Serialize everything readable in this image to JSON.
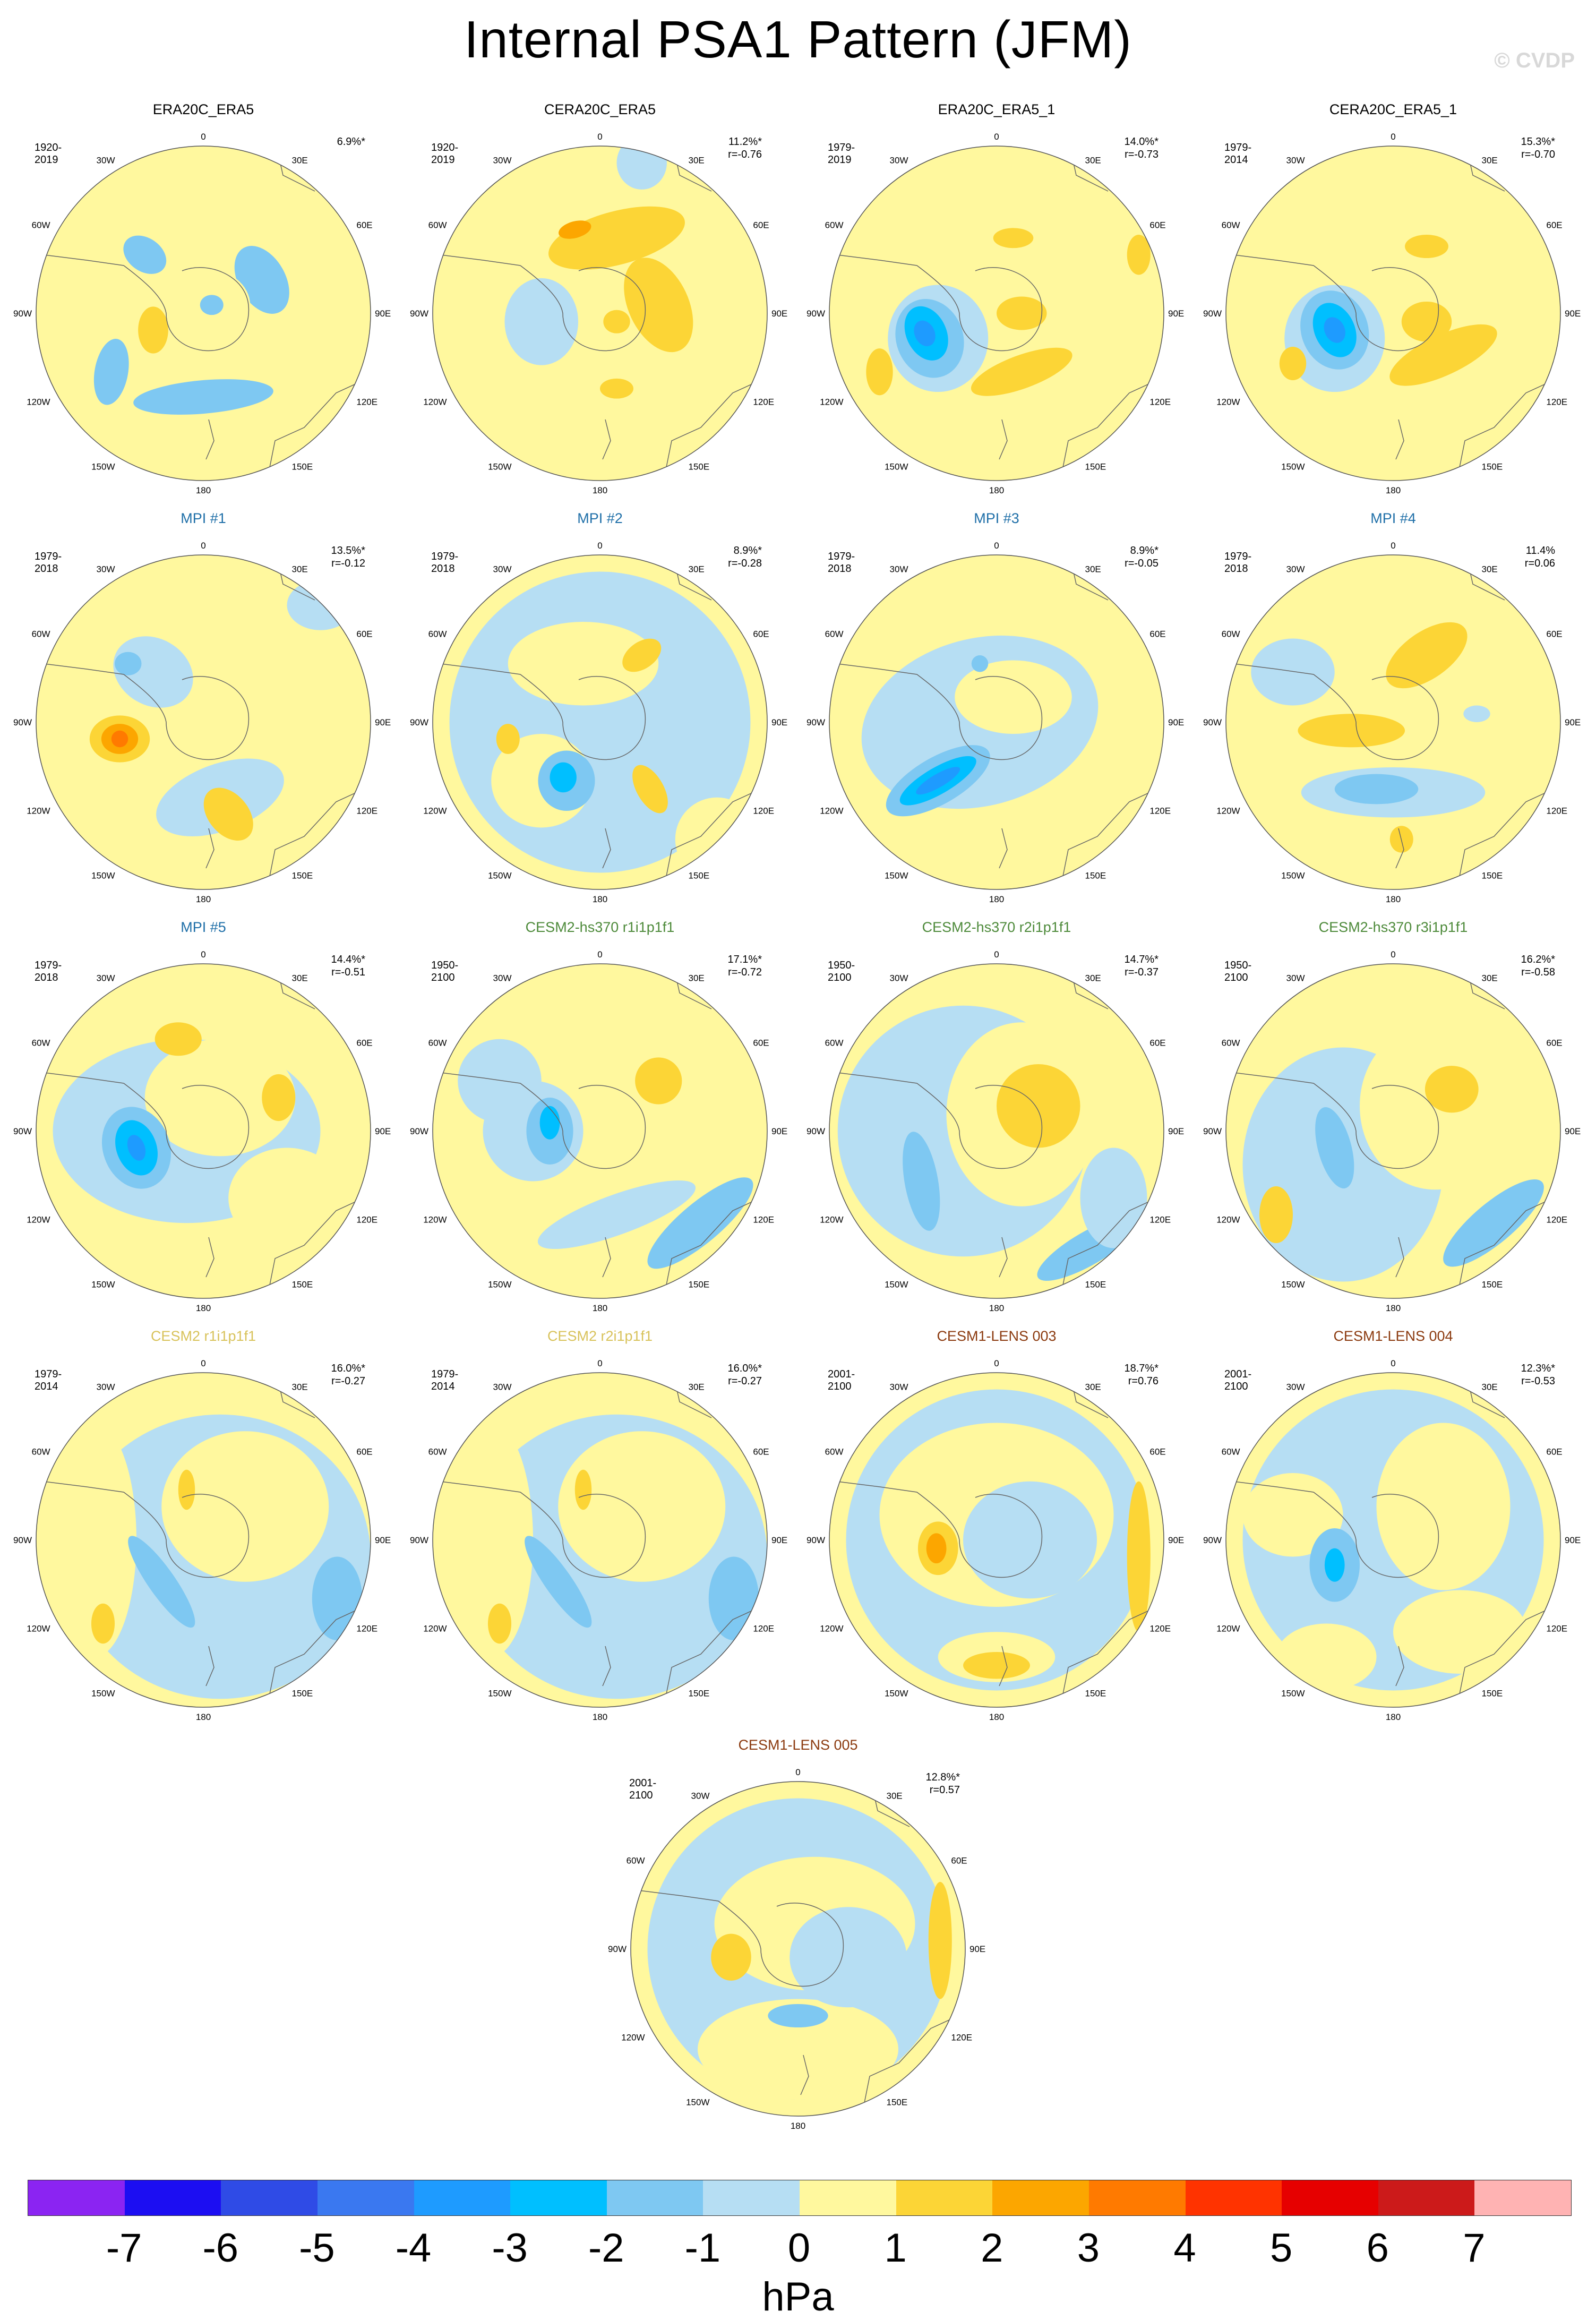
{
  "title": "Internal PSA1 Pattern (JFM)",
  "watermark": "© CVDP",
  "lon_labels": [
    "0",
    "30E",
    "60E",
    "90E",
    "120E",
    "150E",
    "180",
    "150W",
    "120W",
    "90W",
    "60W",
    "30W"
  ],
  "colors": {
    "neg3": "#1e9bff",
    "neg2": "#00bfff",
    "neg1": "#7ec8f2",
    "neg0": "#b6def3",
    "pos0": "#fff89e",
    "pos1": "#fcd536",
    "pos2": "#fca600",
    "pos3": "#ff7a00",
    "obs_title": "#000000",
    "mpi_title": "#1f6fa8",
    "cesm2hs_title": "#4d8a3a",
    "cesm2_title": "#d8c25a",
    "lens_title": "#8b3a0f"
  },
  "panels": [
    {
      "name": "ERA20C_ERA5",
      "period": "1920-2019",
      "pct": "6.9%*",
      "r": "",
      "title_color": "obs_title",
      "blobs": [
        [
          "neg1",
          -0.35,
          -0.35,
          0.14,
          0.1,
          35
        ],
        [
          "neg1",
          0.35,
          -0.2,
          0.14,
          0.22,
          -30
        ],
        [
          "neg1",
          -0.55,
          0.35,
          0.1,
          0.2,
          10
        ],
        [
          "neg1",
          0.0,
          0.5,
          0.42,
          0.1,
          -5
        ],
        [
          "pos0",
          0.0,
          -0.85,
          0.2,
          0.3,
          0
        ],
        [
          "pos0",
          0.0,
          -0.05,
          0.28,
          0.22,
          0
        ],
        [
          "pos1",
          -0.3,
          0.1,
          0.09,
          0.14,
          0
        ],
        [
          "neg1",
          0.05,
          -0.05,
          0.07,
          0.06,
          0
        ]
      ]
    },
    {
      "name": "CERA20C_ERA5",
      "period": "1920-2019",
      "pct": "11.2%*",
      "r": "r=-0.76",
      "title_color": "obs_title",
      "blobs": [
        [
          "pos1",
          0.1,
          -0.45,
          0.42,
          0.16,
          -15
        ],
        [
          "pos2",
          -0.15,
          -0.5,
          0.1,
          0.05,
          -15
        ],
        [
          "pos1",
          0.35,
          -0.05,
          0.18,
          0.3,
          -25
        ],
        [
          "neg0",
          -0.35,
          0.05,
          0.22,
          0.26,
          0
        ],
        [
          "neg0",
          0.25,
          -0.9,
          0.15,
          0.16,
          0
        ],
        [
          "pos1",
          0.1,
          0.45,
          0.1,
          0.06,
          0
        ],
        [
          "pos1",
          0.1,
          0.05,
          0.08,
          0.07,
          0
        ]
      ]
    },
    {
      "name": "ERA20C_ERA5_1",
      "period": "1979-2019",
      "pct": "14.0%*",
      "r": "r=-0.73",
      "title_color": "obs_title",
      "blobs": [
        [
          "pos0",
          0.1,
          -0.3,
          0.5,
          0.3,
          0
        ],
        [
          "pos1",
          0.1,
          -0.45,
          0.12,
          0.06,
          0
        ],
        [
          "neg0",
          -0.35,
          0.15,
          0.3,
          0.32,
          0
        ],
        [
          "neg1",
          -0.4,
          0.15,
          0.2,
          0.24,
          -20
        ],
        [
          "neg2",
          -0.42,
          0.12,
          0.12,
          0.17,
          -25
        ],
        [
          "neg3",
          -0.43,
          0.12,
          0.06,
          0.08,
          -25
        ],
        [
          "pos1",
          0.15,
          0.35,
          0.32,
          0.1,
          -20
        ],
        [
          "pos1",
          -0.7,
          0.35,
          0.08,
          0.14,
          0
        ],
        [
          "pos1",
          0.85,
          -0.35,
          0.07,
          0.12,
          0
        ],
        [
          "pos1",
          0.15,
          0.0,
          0.15,
          0.1,
          0
        ]
      ]
    },
    {
      "name": "CERA20C_ERA5_1",
      "period": "1979-2014",
      "pct": "15.3%*",
      "r": "r=-0.70",
      "title_color": "obs_title",
      "blobs": [
        [
          "pos0",
          0.1,
          -0.3,
          0.5,
          0.3,
          0
        ],
        [
          "pos1",
          0.2,
          -0.4,
          0.13,
          0.07,
          0
        ],
        [
          "neg0",
          -0.35,
          0.15,
          0.3,
          0.32,
          0
        ],
        [
          "neg1",
          -0.35,
          0.1,
          0.2,
          0.24,
          -20
        ],
        [
          "neg2",
          -0.35,
          0.1,
          0.12,
          0.17,
          -25
        ],
        [
          "neg3",
          -0.35,
          0.1,
          0.06,
          0.08,
          -25
        ],
        [
          "pos1",
          0.3,
          0.25,
          0.35,
          0.12,
          -25
        ],
        [
          "pos1",
          -0.6,
          0.3,
          0.08,
          0.1,
          0
        ],
        [
          "pos1",
          0.2,
          0.05,
          0.15,
          0.12,
          0
        ]
      ]
    },
    {
      "name": "MPI #1",
      "period": "1979-2018",
      "pct": "13.5%*",
      "r": "r=-0.12",
      "title_color": "mpi_title",
      "blobs": [
        [
          "neg0",
          -0.3,
          -0.3,
          0.25,
          0.2,
          30
        ],
        [
          "neg1",
          -0.45,
          -0.35,
          0.08,
          0.07,
          0
        ],
        [
          "pos1",
          -0.5,
          0.1,
          0.18,
          0.14,
          0
        ],
        [
          "pos2",
          -0.5,
          0.1,
          0.11,
          0.09,
          0
        ],
        [
          "pos3",
          -0.5,
          0.1,
          0.05,
          0.05,
          0
        ],
        [
          "neg0",
          0.1,
          0.45,
          0.4,
          0.2,
          -20
        ],
        [
          "pos1",
          0.15,
          0.55,
          0.12,
          0.18,
          -40
        ],
        [
          "neg0",
          0.7,
          -0.7,
          0.2,
          0.15,
          0
        ]
      ]
    },
    {
      "name": "MPI #2",
      "period": "1979-2018",
      "pct": "8.9%*",
      "r": "r=-0.28",
      "title_color": "mpi_title",
      "blobs": [
        [
          "neg0",
          0.0,
          0.0,
          0.9,
          0.9,
          0
        ],
        [
          "pos0",
          -0.1,
          -0.35,
          0.45,
          0.25,
          0
        ],
        [
          "pos1",
          0.25,
          -0.4,
          0.13,
          0.08,
          -35
        ],
        [
          "pos0",
          -0.35,
          0.35,
          0.3,
          0.28,
          0
        ],
        [
          "neg1",
          -0.2,
          0.35,
          0.17,
          0.18,
          0
        ],
        [
          "neg2",
          -0.22,
          0.33,
          0.08,
          0.09,
          0
        ],
        [
          "pos1",
          -0.55,
          0.1,
          0.07,
          0.09,
          0
        ],
        [
          "pos1",
          0.3,
          0.4,
          0.08,
          0.16,
          -30
        ],
        [
          "pos0",
          0.7,
          0.7,
          0.25,
          0.25,
          0
        ]
      ]
    },
    {
      "name": "MPI #3",
      "period": "1979-2018",
      "pct": "8.9%*",
      "r": "r=-0.05",
      "title_color": "mpi_title",
      "blobs": [
        [
          "neg0",
          -0.1,
          0.0,
          0.72,
          0.5,
          -15
        ],
        [
          "pos0",
          0.1,
          -0.15,
          0.35,
          0.22,
          0
        ],
        [
          "neg1",
          -0.35,
          0.35,
          0.35,
          0.14,
          -30
        ],
        [
          "neg2",
          -0.35,
          0.35,
          0.26,
          0.08,
          -30
        ],
        [
          "neg3",
          -0.35,
          0.35,
          0.15,
          0.04,
          -30
        ],
        [
          "neg1",
          -0.1,
          -0.35,
          0.05,
          0.05,
          0
        ],
        [
          "pos0",
          0.3,
          0.7,
          0.3,
          0.15,
          0
        ]
      ]
    },
    {
      "name": "MPI #4",
      "period": "1979-2018",
      "pct": "11.4%",
      "r": "r=0.06",
      "title_color": "mpi_title",
      "blobs": [
        [
          "pos1",
          0.2,
          -0.4,
          0.28,
          0.14,
          -35
        ],
        [
          "pos1",
          -0.25,
          0.05,
          0.32,
          0.1,
          0
        ],
        [
          "neg0",
          0.0,
          0.42,
          0.55,
          0.15,
          0
        ],
        [
          "neg1",
          -0.1,
          0.4,
          0.25,
          0.09,
          0
        ],
        [
          "neg0",
          -0.6,
          -0.3,
          0.25,
          0.2,
          0
        ],
        [
          "pos1",
          0.05,
          0.7,
          0.07,
          0.08,
          0
        ],
        [
          "neg0",
          0.5,
          -0.05,
          0.08,
          0.05,
          0
        ]
      ]
    },
    {
      "name": "MPI #5",
      "period": "1979-2018",
      "pct": "14.4%*",
      "r": "r=-0.51",
      "title_color": "mpi_title",
      "blobs": [
        [
          "neg0",
          -0.1,
          0.0,
          0.8,
          0.55,
          0
        ],
        [
          "pos0",
          0.1,
          -0.2,
          0.45,
          0.35,
          0
        ],
        [
          "pos1",
          -0.15,
          -0.55,
          0.14,
          0.1,
          0
        ],
        [
          "pos1",
          0.45,
          -0.2,
          0.1,
          0.14,
          0
        ],
        [
          "neg1",
          -0.4,
          0.1,
          0.2,
          0.25,
          -20
        ],
        [
          "neg2",
          -0.4,
          0.1,
          0.12,
          0.17,
          -20
        ],
        [
          "neg3",
          -0.4,
          0.1,
          0.05,
          0.08,
          -20
        ],
        [
          "pos0",
          0.5,
          0.4,
          0.35,
          0.3,
          0
        ]
      ]
    },
    {
      "name": "CESM2-hs370 r1i1p1f1",
      "period": "1950-2100",
      "pct": "17.1%*",
      "r": "r=-0.72",
      "title_color": "cesm2hs_title",
      "blobs": [
        [
          "pos1",
          0.35,
          -0.3,
          0.14,
          0.14,
          0
        ],
        [
          "neg0",
          -0.4,
          0.0,
          0.3,
          0.3,
          0
        ],
        [
          "neg1",
          -0.3,
          0.0,
          0.14,
          0.2,
          0
        ],
        [
          "neg2",
          -0.3,
          -0.05,
          0.06,
          0.1,
          0
        ],
        [
          "neg1",
          0.6,
          0.55,
          0.4,
          0.12,
          -40
        ],
        [
          "neg0",
          -0.6,
          -0.3,
          0.25,
          0.25,
          0
        ],
        [
          "neg0",
          0.1,
          0.5,
          0.5,
          0.12,
          -20
        ]
      ]
    },
    {
      "name": "CESM2-hs370 r2i1p1f1",
      "period": "1950-2100",
      "pct": "14.7%*",
      "r": "r=-0.37",
      "title_color": "cesm2hs_title",
      "blobs": [
        [
          "neg0",
          -0.2,
          0.0,
          0.75,
          0.75,
          0
        ],
        [
          "pos0",
          0.15,
          -0.1,
          0.45,
          0.55,
          0
        ],
        [
          "pos1",
          0.25,
          -0.15,
          0.25,
          0.25,
          0
        ],
        [
          "neg1",
          -0.45,
          0.3,
          0.1,
          0.3,
          -10
        ],
        [
          "neg1",
          0.55,
          0.7,
          0.35,
          0.1,
          -30
        ],
        [
          "neg0",
          0.7,
          0.4,
          0.2,
          0.3,
          0
        ]
      ]
    },
    {
      "name": "CESM2-hs370 r3i1p1f1",
      "period": "1950-2100",
      "pct": "16.2%*",
      "r": "r=-0.58",
      "title_color": "cesm2hs_title",
      "blobs": [
        [
          "neg0",
          -0.3,
          0.2,
          0.6,
          0.7,
          0
        ],
        [
          "pos0",
          0.25,
          -0.15,
          0.45,
          0.5,
          0
        ],
        [
          "pos1",
          0.35,
          -0.25,
          0.16,
          0.14,
          0
        ],
        [
          "neg1",
          -0.35,
          0.1,
          0.1,
          0.25,
          -15
        ],
        [
          "pos1",
          -0.7,
          0.5,
          0.1,
          0.17,
          0
        ],
        [
          "neg1",
          0.6,
          0.55,
          0.38,
          0.12,
          -40
        ]
      ]
    },
    {
      "name": "CESM2 r1i1p1f1",
      "period": "1979-2014",
      "pct": "16.0%*",
      "r": "r=-0.27",
      "title_color": "cesm2_title",
      "blobs": [
        [
          "neg0",
          0.1,
          0.1,
          0.9,
          0.85,
          0
        ],
        [
          "pos0",
          0.25,
          -0.2,
          0.5,
          0.45,
          0
        ],
        [
          "pos0",
          -0.65,
          0.0,
          0.25,
          0.7,
          0
        ],
        [
          "pos1",
          -0.1,
          -0.3,
          0.05,
          0.12,
          0
        ],
        [
          "neg1",
          -0.25,
          0.25,
          0.08,
          0.33,
          -35
        ],
        [
          "pos1",
          -0.6,
          0.5,
          0.07,
          0.12,
          0
        ],
        [
          "neg1",
          0.8,
          0.35,
          0.15,
          0.25,
          0
        ]
      ]
    },
    {
      "name": "CESM2 r2i1p1f1",
      "period": "1979-2014",
      "pct": "16.0%*",
      "r": "r=-0.27",
      "title_color": "cesm2_title",
      "blobs": [
        [
          "neg0",
          0.1,
          0.1,
          0.9,
          0.85,
          0
        ],
        [
          "pos0",
          0.25,
          -0.2,
          0.5,
          0.45,
          0
        ],
        [
          "pos0",
          -0.65,
          0.0,
          0.25,
          0.7,
          0
        ],
        [
          "pos1",
          -0.1,
          -0.3,
          0.05,
          0.12,
          0
        ],
        [
          "neg1",
          -0.25,
          0.25,
          0.08,
          0.33,
          -35
        ],
        [
          "pos1",
          -0.6,
          0.5,
          0.07,
          0.12,
          0
        ],
        [
          "neg1",
          0.8,
          0.35,
          0.15,
          0.25,
          0
        ]
      ]
    },
    {
      "name": "CESM1-LENS 003",
      "period": "2001-2100",
      "pct": "18.7%*",
      "r": "r=0.76",
      "title_color": "lens_title",
      "blobs": [
        [
          "neg0",
          0.0,
          0.0,
          0.9,
          0.9,
          0
        ],
        [
          "pos0",
          0.0,
          -0.15,
          0.7,
          0.55,
          0
        ],
        [
          "neg0",
          0.2,
          0.0,
          0.4,
          0.35,
          0
        ],
        [
          "pos1",
          -0.35,
          0.05,
          0.12,
          0.16,
          0
        ],
        [
          "pos2",
          -0.36,
          0.05,
          0.06,
          0.09,
          0
        ],
        [
          "pos1",
          0.85,
          0.1,
          0.07,
          0.45,
          0
        ],
        [
          "pos0",
          0.0,
          0.7,
          0.35,
          0.15,
          0
        ],
        [
          "pos1",
          0.0,
          0.75,
          0.2,
          0.08,
          0
        ]
      ]
    },
    {
      "name": "CESM1-LENS 004",
      "period": "2001-2100",
      "pct": "12.3%*",
      "r": "r=-0.53",
      "title_color": "lens_title",
      "blobs": [
        [
          "neg0",
          0.0,
          0.0,
          0.9,
          0.9,
          0
        ],
        [
          "pos0",
          0.3,
          -0.2,
          0.4,
          0.5,
          0
        ],
        [
          "pos0",
          -0.6,
          -0.15,
          0.3,
          0.25,
          0
        ],
        [
          "neg1",
          -0.35,
          0.15,
          0.15,
          0.22,
          0
        ],
        [
          "neg2",
          -0.35,
          0.15,
          0.06,
          0.1,
          0
        ],
        [
          "pos0",
          0.4,
          0.55,
          0.4,
          0.25,
          0
        ],
        [
          "pos0",
          -0.4,
          0.7,
          0.3,
          0.2,
          0
        ]
      ]
    },
    {
      "name": "CESM1-LENS 005",
      "period": "2001-2100",
      "pct": "12.8%*",
      "r": "r=0.57",
      "title_color": "lens_title",
      "blobs": [
        [
          "neg0",
          0.0,
          0.0,
          0.9,
          0.9,
          0
        ],
        [
          "pos0",
          0.1,
          -0.15,
          0.6,
          0.4,
          0
        ],
        [
          "pos0",
          0.0,
          0.6,
          0.6,
          0.3,
          0
        ],
        [
          "neg0",
          0.3,
          0.05,
          0.35,
          0.3,
          0
        ],
        [
          "pos1",
          -0.4,
          0.05,
          0.12,
          0.14,
          0
        ],
        [
          "neg1",
          0.0,
          0.4,
          0.18,
          0.07,
          0
        ],
        [
          "pos1",
          0.85,
          -0.05,
          0.07,
          0.35,
          0
        ]
      ]
    }
  ],
  "colorbar": {
    "colors": [
      "#8b24f2",
      "#1c0ef2",
      "#2f4be6",
      "#3a78f0",
      "#1e9bff",
      "#00bfff",
      "#7ec8f2",
      "#b6def3",
      "#fff89e",
      "#fcd536",
      "#fca600",
      "#ff7a00",
      "#ff3300",
      "#e60000",
      "#cc1a1a",
      "#ffb3b3"
    ],
    "ticks": [
      "-7",
      "-6",
      "-5",
      "-4",
      "-3",
      "-2",
      "-1",
      "0",
      "1",
      "2",
      "3",
      "4",
      "5",
      "6",
      "7"
    ],
    "unit": "hPa"
  }
}
